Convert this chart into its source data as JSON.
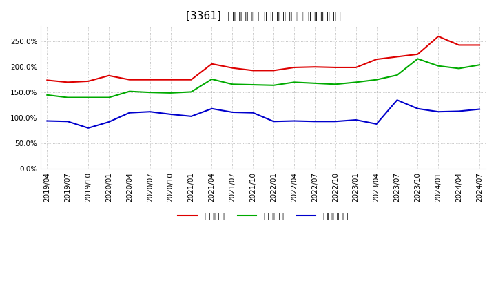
{
  "title": "[3361]  流動比率、当座比率、現頲金比率の推移",
  "x_labels": [
    "2019/04",
    "2019/07",
    "2019/10",
    "2020/01",
    "2020/04",
    "2020/07",
    "2020/10",
    "2021/01",
    "2021/04",
    "2021/07",
    "2021/10",
    "2022/01",
    "2022/04",
    "2022/07",
    "2022/10",
    "2023/01",
    "2023/04",
    "2023/07",
    "2023/10",
    "2024/01",
    "2024/04",
    "2024/07"
  ],
  "ryudo": [
    1.74,
    1.7,
    1.72,
    1.83,
    1.75,
    1.75,
    1.75,
    1.75,
    2.06,
    1.98,
    1.93,
    1.93,
    1.99,
    2.0,
    1.99,
    1.99,
    2.15,
    2.2,
    2.25,
    2.6,
    2.43,
    2.43
  ],
  "toza": [
    1.45,
    1.4,
    1.4,
    1.4,
    1.52,
    1.5,
    1.49,
    1.51,
    1.76,
    1.66,
    1.65,
    1.64,
    1.7,
    1.68,
    1.66,
    1.7,
    1.75,
    1.84,
    2.16,
    2.02,
    1.97,
    2.04
  ],
  "genyo": [
    0.94,
    0.93,
    0.8,
    0.92,
    1.1,
    1.12,
    1.07,
    1.03,
    1.18,
    1.11,
    1.1,
    0.93,
    0.94,
    0.93,
    0.93,
    0.96,
    0.88,
    1.35,
    1.18,
    1.12,
    1.13,
    1.17
  ],
  "ryudo_color": "#dd0000",
  "toza_color": "#00aa00",
  "genyo_color": "#0000cc",
  "legend_label_ryudo": "流動比率",
  "legend_label_toza": "当座比率",
  "legend_label_genyo": "現頲金比率",
  "ylim": [
    0.0,
    2.8
  ],
  "yticks": [
    0.0,
    0.5,
    1.0,
    1.5,
    2.0,
    2.5
  ],
  "ytick_labels": [
    "0.0%",
    "50.0%",
    "100.0%",
    "150.0%",
    "200.0%",
    "250.0%"
  ],
  "background_color": "#ffffff",
  "plot_bg_color": "#ffffff",
  "grid_color": "#aaaaaa",
  "title_fontsize": 11,
  "tick_fontsize": 7.5,
  "legend_fontsize": 9
}
